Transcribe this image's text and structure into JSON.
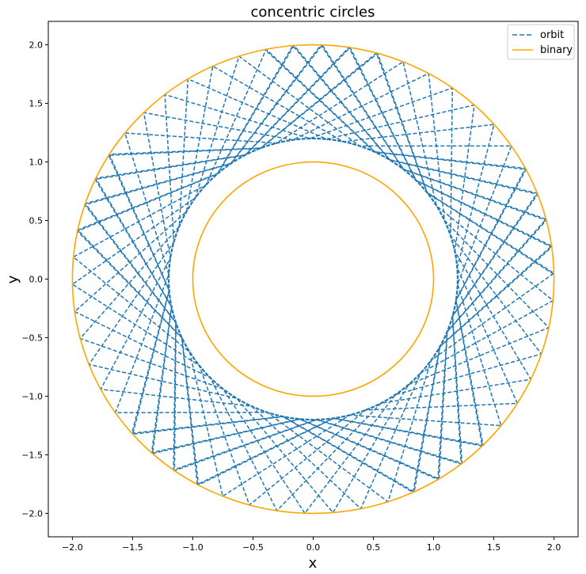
{
  "chart_data": {
    "type": "line",
    "title": "concentric circles",
    "xlabel": "x",
    "ylabel": "y",
    "xlim": [
      -2.2,
      2.2
    ],
    "ylim": [
      -2.2,
      2.2
    ],
    "xticks": [
      -2.0,
      -1.5,
      -1.0,
      -0.5,
      0.0,
      0.5,
      1.0,
      1.5,
      2.0
    ],
    "yticks": [
      -2.0,
      -1.5,
      -1.0,
      -0.5,
      0.0,
      0.5,
      1.0,
      1.5,
      2.0
    ],
    "xtick_labels": [
      "−2.0",
      "−1.5",
      "−1.0",
      "−0.5",
      "0.0",
      "0.5",
      "1.0",
      "1.5",
      "2.0"
    ],
    "ytick_labels": [
      "−2.0",
      "−1.5",
      "−1.0",
      "−0.5",
      "0.0",
      "0.5",
      "1.0",
      "1.5",
      "2.0"
    ],
    "grid": false,
    "legend_position": "top-right",
    "series": [
      {
        "name": "orbit",
        "style": "dashed",
        "color": "#1f77b4",
        "shape": "chord pattern between radius 1.2 and radius 2.0, chords spanning ~1.2 rad",
        "r_min": 1.2,
        "r_max": 2.0,
        "angular_step_rad": 1.28,
        "chord_count": 150
      },
      {
        "name": "binary",
        "style": "solid",
        "color": "#ffa500",
        "circles": [
          {
            "cx": 0,
            "cy": 0,
            "r": 2.0
          },
          {
            "cx": 0,
            "cy": 0,
            "r": 1.0
          }
        ]
      }
    ]
  }
}
